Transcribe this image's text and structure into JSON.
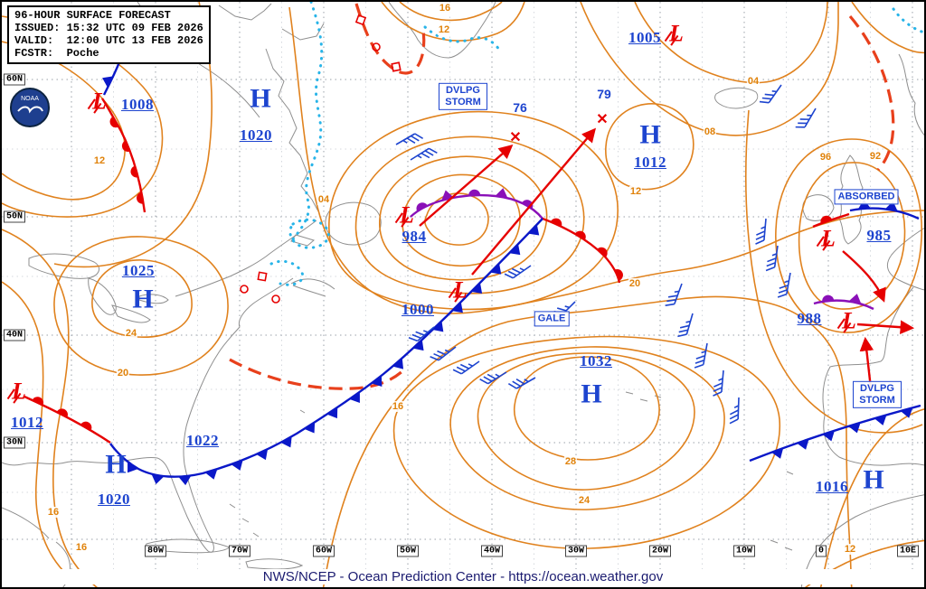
{
  "title_block": {
    "line1": "96-HOUR SURFACE FORECAST",
    "line2": "ISSUED: 15:32 UTC 09 FEB 2026",
    "line3": "VALID:  12:00 UTC 13 FEB 2026",
    "line4": "FCSTR:  Poche"
  },
  "logo": {
    "label": "NOAA"
  },
  "footer": {
    "credit": "NWS/NCEP - Ocean Prediction Center - https://ocean.weather.gov"
  },
  "axis": {
    "lat": [
      "60N",
      "50N",
      "40N",
      "30N"
    ],
    "lon": [
      "80W",
      "70W",
      "60W",
      "50W",
      "40W",
      "30W",
      "20W",
      "10W",
      "0",
      "10E"
    ]
  },
  "systems": [
    {
      "symbol": "L",
      "value": "1008"
    },
    {
      "symbol": "H",
      "value": "1020"
    },
    {
      "symbol": "L",
      "value": "1005"
    },
    {
      "symbol": "H",
      "value": "1012"
    },
    {
      "symbol": "L",
      "value": "984"
    },
    {
      "symbol": "L",
      "value": "1000"
    },
    {
      "symbol": "H",
      "value": "1025"
    },
    {
      "symbol": "L",
      "value": "985"
    },
    {
      "symbol": "L",
      "value": "988"
    },
    {
      "symbol": "H",
      "value": "1032"
    },
    {
      "symbol": "L",
      "value": "1012"
    },
    {
      "symbol": "H",
      "value": "1022"
    },
    {
      "symbol": "",
      "value": "1020"
    },
    {
      "symbol": "H",
      "value": "1016"
    }
  ],
  "storm_marks": [
    {
      "wind": "76",
      "mark": "✕"
    },
    {
      "wind": "79",
      "mark": "✕"
    }
  ],
  "annotations": [
    "DVLPG STORM",
    "GALE",
    "ABSORBED",
    "DVLPG STORM"
  ],
  "isobar_labels": [
    "16",
    "12",
    "12",
    "04",
    "04",
    "08",
    "96",
    "92",
    "12",
    "20",
    "24",
    "20",
    "16",
    "28",
    "24",
    "16",
    "16",
    "12"
  ],
  "colors": {
    "isobar": "#e0821e",
    "cold_front": "#0a18c8",
    "warm_front": "#e60000",
    "occluded_front": "#8a10b8",
    "system_blue": "#1d44cf",
    "ice_edge": "#28b4e8",
    "trough": "#e8401c"
  }
}
